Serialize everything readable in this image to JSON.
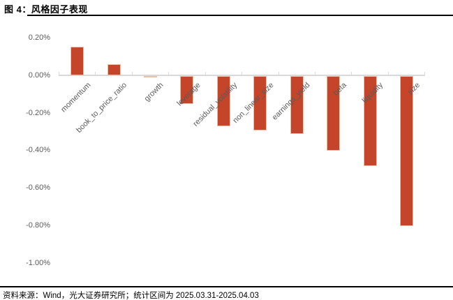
{
  "header": {
    "title": "图 4：风格因子表现"
  },
  "footer": {
    "source": "资料来源：Wind，光大证券研究所；统计区间为 2025.03.31-2025.04.03"
  },
  "chart_data": {
    "type": "bar",
    "title": "风格因子表现",
    "categories": [
      "momentum",
      "book_to_price_ratio",
      "growth",
      "leverage",
      "residual_volatility",
      "non_linear_size",
      "earnings_yield",
      "beta",
      "liquidity",
      "size"
    ],
    "values": [
      0.15,
      0.06,
      -0.01,
      -0.15,
      -0.27,
      -0.29,
      -0.31,
      -0.4,
      -0.48,
      -0.8
    ],
    "unit": "%",
    "xlabel": "",
    "ylabel": "",
    "y_tick_labels": [
      "0.20%",
      "0.00%",
      "-0.20%",
      "-0.40%",
      "-0.60%",
      "-0.80%",
      "-1.00%"
    ],
    "y_tick_values": [
      0.2,
      0.0,
      -0.2,
      -0.4,
      -0.6,
      -0.8,
      -1.0
    ],
    "ylim": [
      -1.0,
      0.2
    ],
    "grid": false,
    "legend": "none",
    "bar_color": "#c5452a",
    "bar_border_color": "#ecc0ab",
    "axis_color": "#d9d9d9",
    "tick_label_color": "#595959"
  }
}
